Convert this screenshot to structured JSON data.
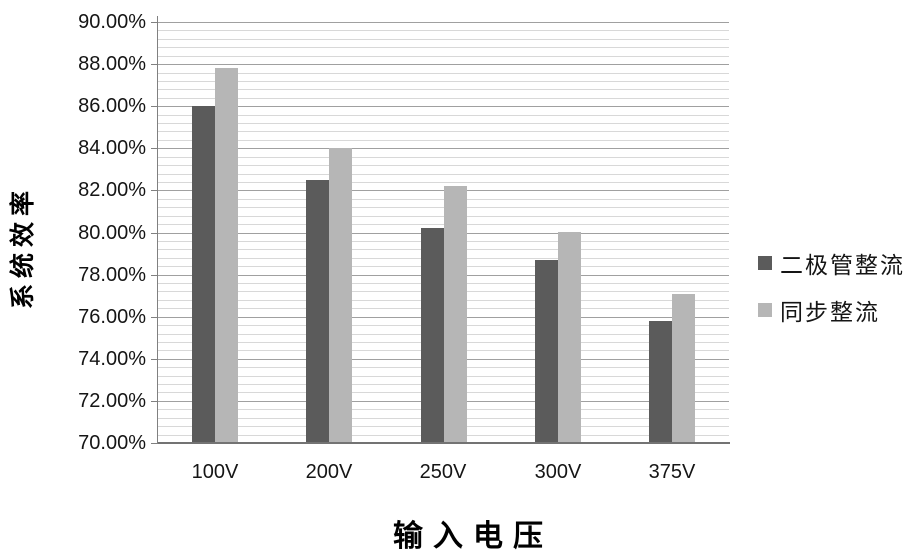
{
  "chart_data": {
    "type": "bar",
    "title": "",
    "xlabel": "输入电压",
    "ylabel": "系统效率",
    "categories": [
      "100V",
      "200V",
      "250V",
      "300V",
      "375V"
    ],
    "series": [
      {
        "name": "二极管整流",
        "color": "#5b5b5b",
        "values": [
          86.0,
          82.5,
          80.2,
          78.7,
          75.8
        ]
      },
      {
        "name": "同步整流",
        "color": "#b6b6b6",
        "values": [
          87.8,
          84.0,
          82.2,
          80.0,
          77.1
        ]
      }
    ],
    "ylim": [
      70,
      90
    ],
    "y_major_unit": 2,
    "y_minor_unit": 0.4,
    "y_ticks": [
      {
        "label": "90.00%",
        "value": 90
      },
      {
        "label": "88.00%",
        "value": 88
      },
      {
        "label": "86.00%",
        "value": 86
      },
      {
        "label": "84.00%",
        "value": 84
      },
      {
        "label": "82.00%",
        "value": 82
      },
      {
        "label": "80.00%",
        "value": 80
      },
      {
        "label": "78.00%",
        "value": 78
      },
      {
        "label": "76.00%",
        "value": 76
      },
      {
        "label": "74.00%",
        "value": 74
      },
      {
        "label": "72.00%",
        "value": 72
      },
      {
        "label": "70.00%",
        "value": 70
      }
    ],
    "grid": "horizontal major+minor",
    "legend_position": "right",
    "colors": {
      "background": "#ffffff",
      "major_gridline": "#a0a0a0",
      "minor_gridline": "#d8d8d8",
      "axis_line": "#808080",
      "text": "#151515"
    }
  }
}
